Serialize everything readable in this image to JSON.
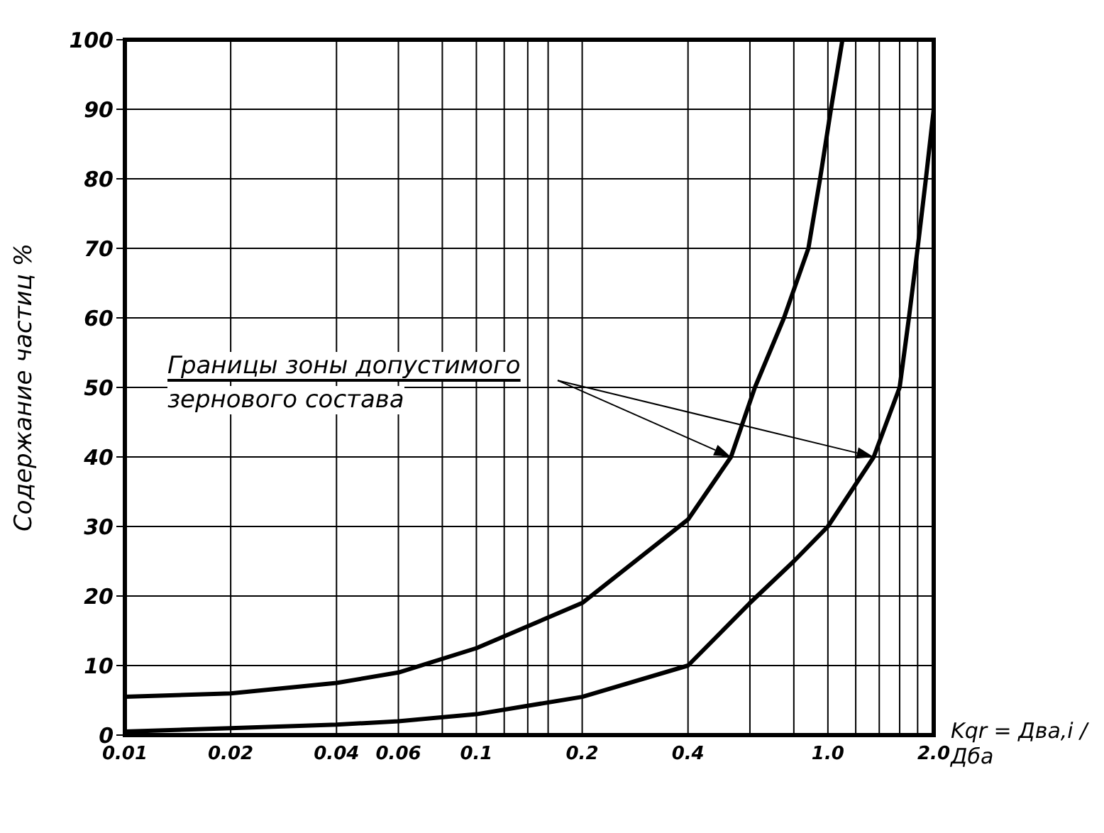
{
  "chart_data": {
    "type": "line",
    "xlabel": "Kqr = Два,i / Дба",
    "ylabel": "Содержание частиц %",
    "annotations": [
      "Границы зоны допустимого зернового состава"
    ],
    "log": "x",
    "grid": true,
    "marker": "none",
    "line_style": "solid",
    "xlim": [
      0.01,
      2
    ],
    "ylim": [
      0,
      100
    ],
    "xticks": [
      0.01,
      0.02,
      0.04,
      0.06,
      {
        "value": 0.08,
        "label": null
      },
      0.1,
      {
        "value": 0.12,
        "label": null
      },
      {
        "value": 0.14,
        "label": null
      },
      {
        "value": 0.16,
        "label": null
      },
      0.2,
      0.4,
      {
        "value": 0.6,
        "label": null
      },
      {
        "value": 0.8,
        "label": null
      },
      {
        "value": 1,
        "label": "1.0"
      },
      {
        "value": 1.2,
        "label": null
      },
      {
        "value": 1.4,
        "label": null
      },
      {
        "value": 1.6,
        "label": null
      },
      {
        "value": 1.8,
        "label": null
      },
      {
        "value": 2,
        "label": "2.0"
      }
    ],
    "yticks": [
      0,
      10,
      20,
      30,
      40,
      50,
      60,
      70,
      80,
      90,
      100
    ],
    "series": [
      {
        "color": "#000000",
        "x": [
          0.01,
          0.02,
          0.04,
          0.06,
          0.1,
          0.2,
          0.4,
          0.53,
          0.62,
          0.75,
          0.88,
          0.95,
          1.02,
          1.1
        ],
        "values": [
          5.5,
          6,
          7.5,
          9,
          12.5,
          19,
          31,
          40,
          50,
          60,
          70,
          80,
          90,
          100
        ]
      },
      {
        "color": "#000000",
        "x": [
          0.01,
          0.02,
          0.04,
          0.06,
          0.1,
          0.2,
          0.4,
          0.6,
          0.8,
          1,
          1.35,
          1.6,
          1.7,
          1.8,
          1.9,
          2
        ],
        "values": [
          0.5,
          1,
          1.5,
          2,
          3,
          5.5,
          10,
          19,
          25,
          30,
          40,
          50,
          60,
          70,
          80,
          90
        ]
      }
    ]
  }
}
